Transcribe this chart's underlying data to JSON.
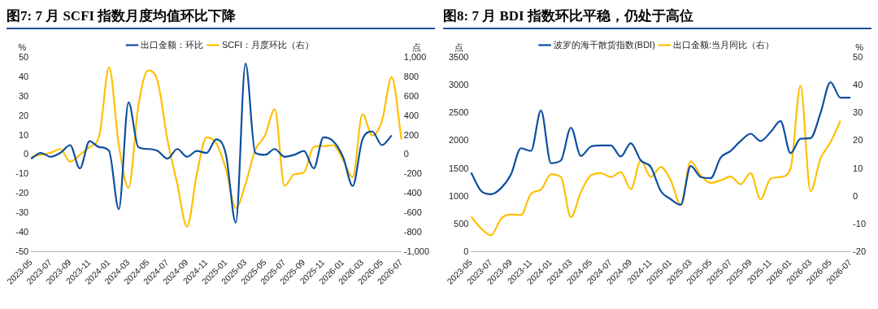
{
  "chart_data": [
    {
      "type": "line",
      "title": "图7: 7 月 SCFI 指数月度均值环比下降",
      "ylabel": "%",
      "y2label": "点",
      "categories": [
        "2023-05",
        null,
        "2023-07",
        null,
        "2023-09",
        null,
        "2023-11",
        null,
        "2024-01",
        null,
        "2024-03",
        null,
        "2024-05",
        null,
        "2024-07",
        null,
        "2024-09",
        null,
        "2024-11",
        null,
        "2025-01",
        null,
        "2025-03",
        null,
        "2025-05",
        null,
        "2025-07",
        null,
        "2025-09",
        null,
        "2025-11",
        null,
        "2026-01",
        null,
        "2026-03",
        null,
        "2026-05",
        null,
        "2026-07"
      ],
      "series": [
        {
          "name": "出口金额：环比",
          "color": "#0e4ea0",
          "values": [
            -2,
            1,
            -1,
            1,
            5,
            -7,
            7,
            4,
            2,
            -28,
            27,
            4,
            3,
            2,
            -2,
            3,
            -1,
            2,
            1,
            8,
            0,
            -35,
            47,
            1,
            0,
            3,
            -1,
            0,
            2,
            -7,
            9,
            7,
            -1,
            -16,
            8,
            12,
            5,
            10,
            null
          ]
        },
        {
          "name": "SCFI：月度环比（右）",
          "color": "#ffc000",
          "axis": "y2",
          "values": [
            -20,
            0,
            20,
            60,
            -70,
            0,
            80,
            200,
            900,
            100,
            -340,
            500,
            870,
            750,
            150,
            -300,
            -740,
            -200,
            180,
            120,
            -150,
            -550,
            -300,
            50,
            200,
            470,
            -320,
            -200,
            -180,
            80,
            90,
            100,
            -50,
            -230,
            420,
            200,
            350,
            800,
            160
          ]
        }
      ],
      "ylim": [
        -50,
        50
      ],
      "yticks": [
        -50,
        -40,
        -30,
        -20,
        -10,
        0,
        10,
        20,
        30,
        40,
        50
      ],
      "y2lim": [
        -1000,
        1000
      ],
      "y2ticks": [
        {
          "value": -1000,
          "label": "-1,000"
        },
        -800,
        -600,
        -400,
        -200,
        0,
        200,
        400,
        600,
        800,
        {
          "value": 1000,
          "label": "1,000"
        }
      ],
      "legend": "top",
      "grid": false
    },
    {
      "type": "line",
      "title": "图8: 7 月 BDI 指数环比平稳，仍处于高位",
      "ylabel": "点",
      "y2label": "%",
      "categories": [
        "2023-05",
        null,
        "2023-07",
        null,
        "2023-09",
        null,
        "2023-11",
        null,
        "2024-01",
        null,
        "2024-03",
        null,
        "2024-05",
        null,
        "2024-07",
        null,
        "2024-09",
        null,
        "2024-11",
        null,
        "2025-01",
        null,
        "2025-03",
        null,
        "2025-05",
        null,
        "2025-07",
        null,
        "2025-09",
        null,
        "2025-11",
        null,
        "2026-01",
        null,
        "2026-03",
        null,
        "2026-05",
        null,
        "2026-07"
      ],
      "series": [
        {
          "name": "波罗的海干散货指数(BDI)",
          "color": "#0e4ea0",
          "values": [
            1430,
            1100,
            1040,
            1150,
            1400,
            1870,
            1820,
            2550,
            1600,
            1650,
            2240,
            1730,
            1900,
            1920,
            1920,
            1720,
            1960,
            1650,
            1530,
            1100,
            950,
            850,
            1550,
            1350,
            1330,
            1700,
            1820,
            2000,
            2130,
            2000,
            2160,
            2360,
            1780,
            2040,
            2050,
            2500,
            3060,
            2780,
            2780
          ]
        },
        {
          "name": "出口金额:当月同比（右）",
          "color": "#ffc000",
          "axis": "y2",
          "values": [
            -7.3,
            -11.5,
            -14,
            -8,
            -6.5,
            -6.7,
            1,
            2.5,
            8,
            7,
            -7.5,
            1.6,
            7.6,
            8.4,
            7,
            8.8,
            2.6,
            13,
            7,
            10.6,
            5.8,
            -3,
            12.7,
            7.6,
            4.9,
            5.8,
            7.2,
            4.4,
            8.4,
            -1,
            6.4,
            7,
            10,
            39.9,
            1.9,
            13.6,
            19.5,
            27.3,
            null
          ]
        }
      ],
      "ylim": [
        0,
        3500
      ],
      "yticks": [
        0,
        500,
        1000,
        1500,
        2000,
        2500,
        3000,
        3500
      ],
      "y2lim": [
        -20,
        50
      ],
      "y2ticks": [
        -20,
        -10,
        0,
        10,
        20,
        30,
        40,
        50
      ],
      "legend": "top",
      "grid": false
    }
  ]
}
